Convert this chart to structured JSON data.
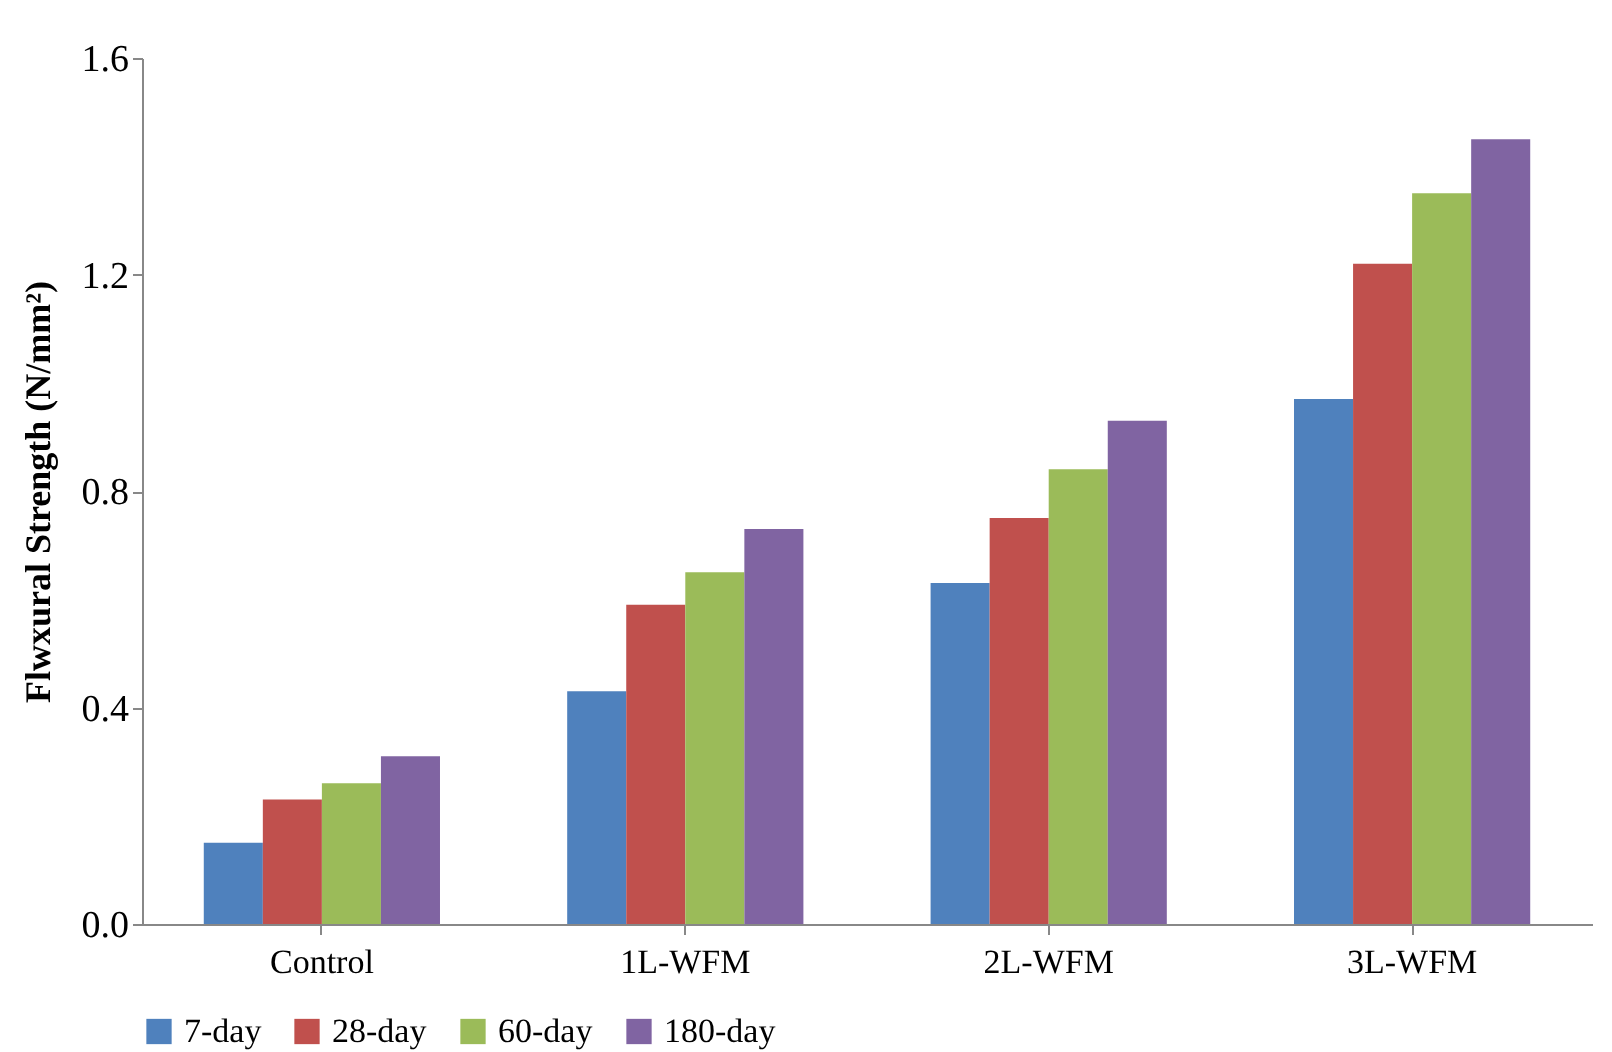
{
  "chart_data": {
    "type": "bar",
    "ylabel": "Flwxural Strength (N/mm²)",
    "categories": [
      "Control",
      "1L-WFM",
      "2L-WFM",
      "3L-WFM"
    ],
    "series": [
      {
        "name": "7-day",
        "color": "#4f81bd",
        "values": [
          0.15,
          0.43,
          0.63,
          0.97
        ]
      },
      {
        "name": "28-day",
        "color": "#c0504d",
        "values": [
          0.23,
          0.59,
          0.75,
          1.22
        ]
      },
      {
        "name": "60-day",
        "color": "#9bbb59",
        "values": [
          0.26,
          0.65,
          0.84,
          1.35
        ]
      },
      {
        "name": "180-day",
        "color": "#8064a2",
        "values": [
          0.31,
          0.73,
          0.93,
          1.45
        ]
      }
    ],
    "ylim": [
      0,
      1.6
    ],
    "yticks": [
      {
        "value": 0,
        "label": "0.0"
      },
      0.4,
      0.8,
      1.2,
      1.6
    ],
    "grid": false,
    "legend": "bottom"
  }
}
